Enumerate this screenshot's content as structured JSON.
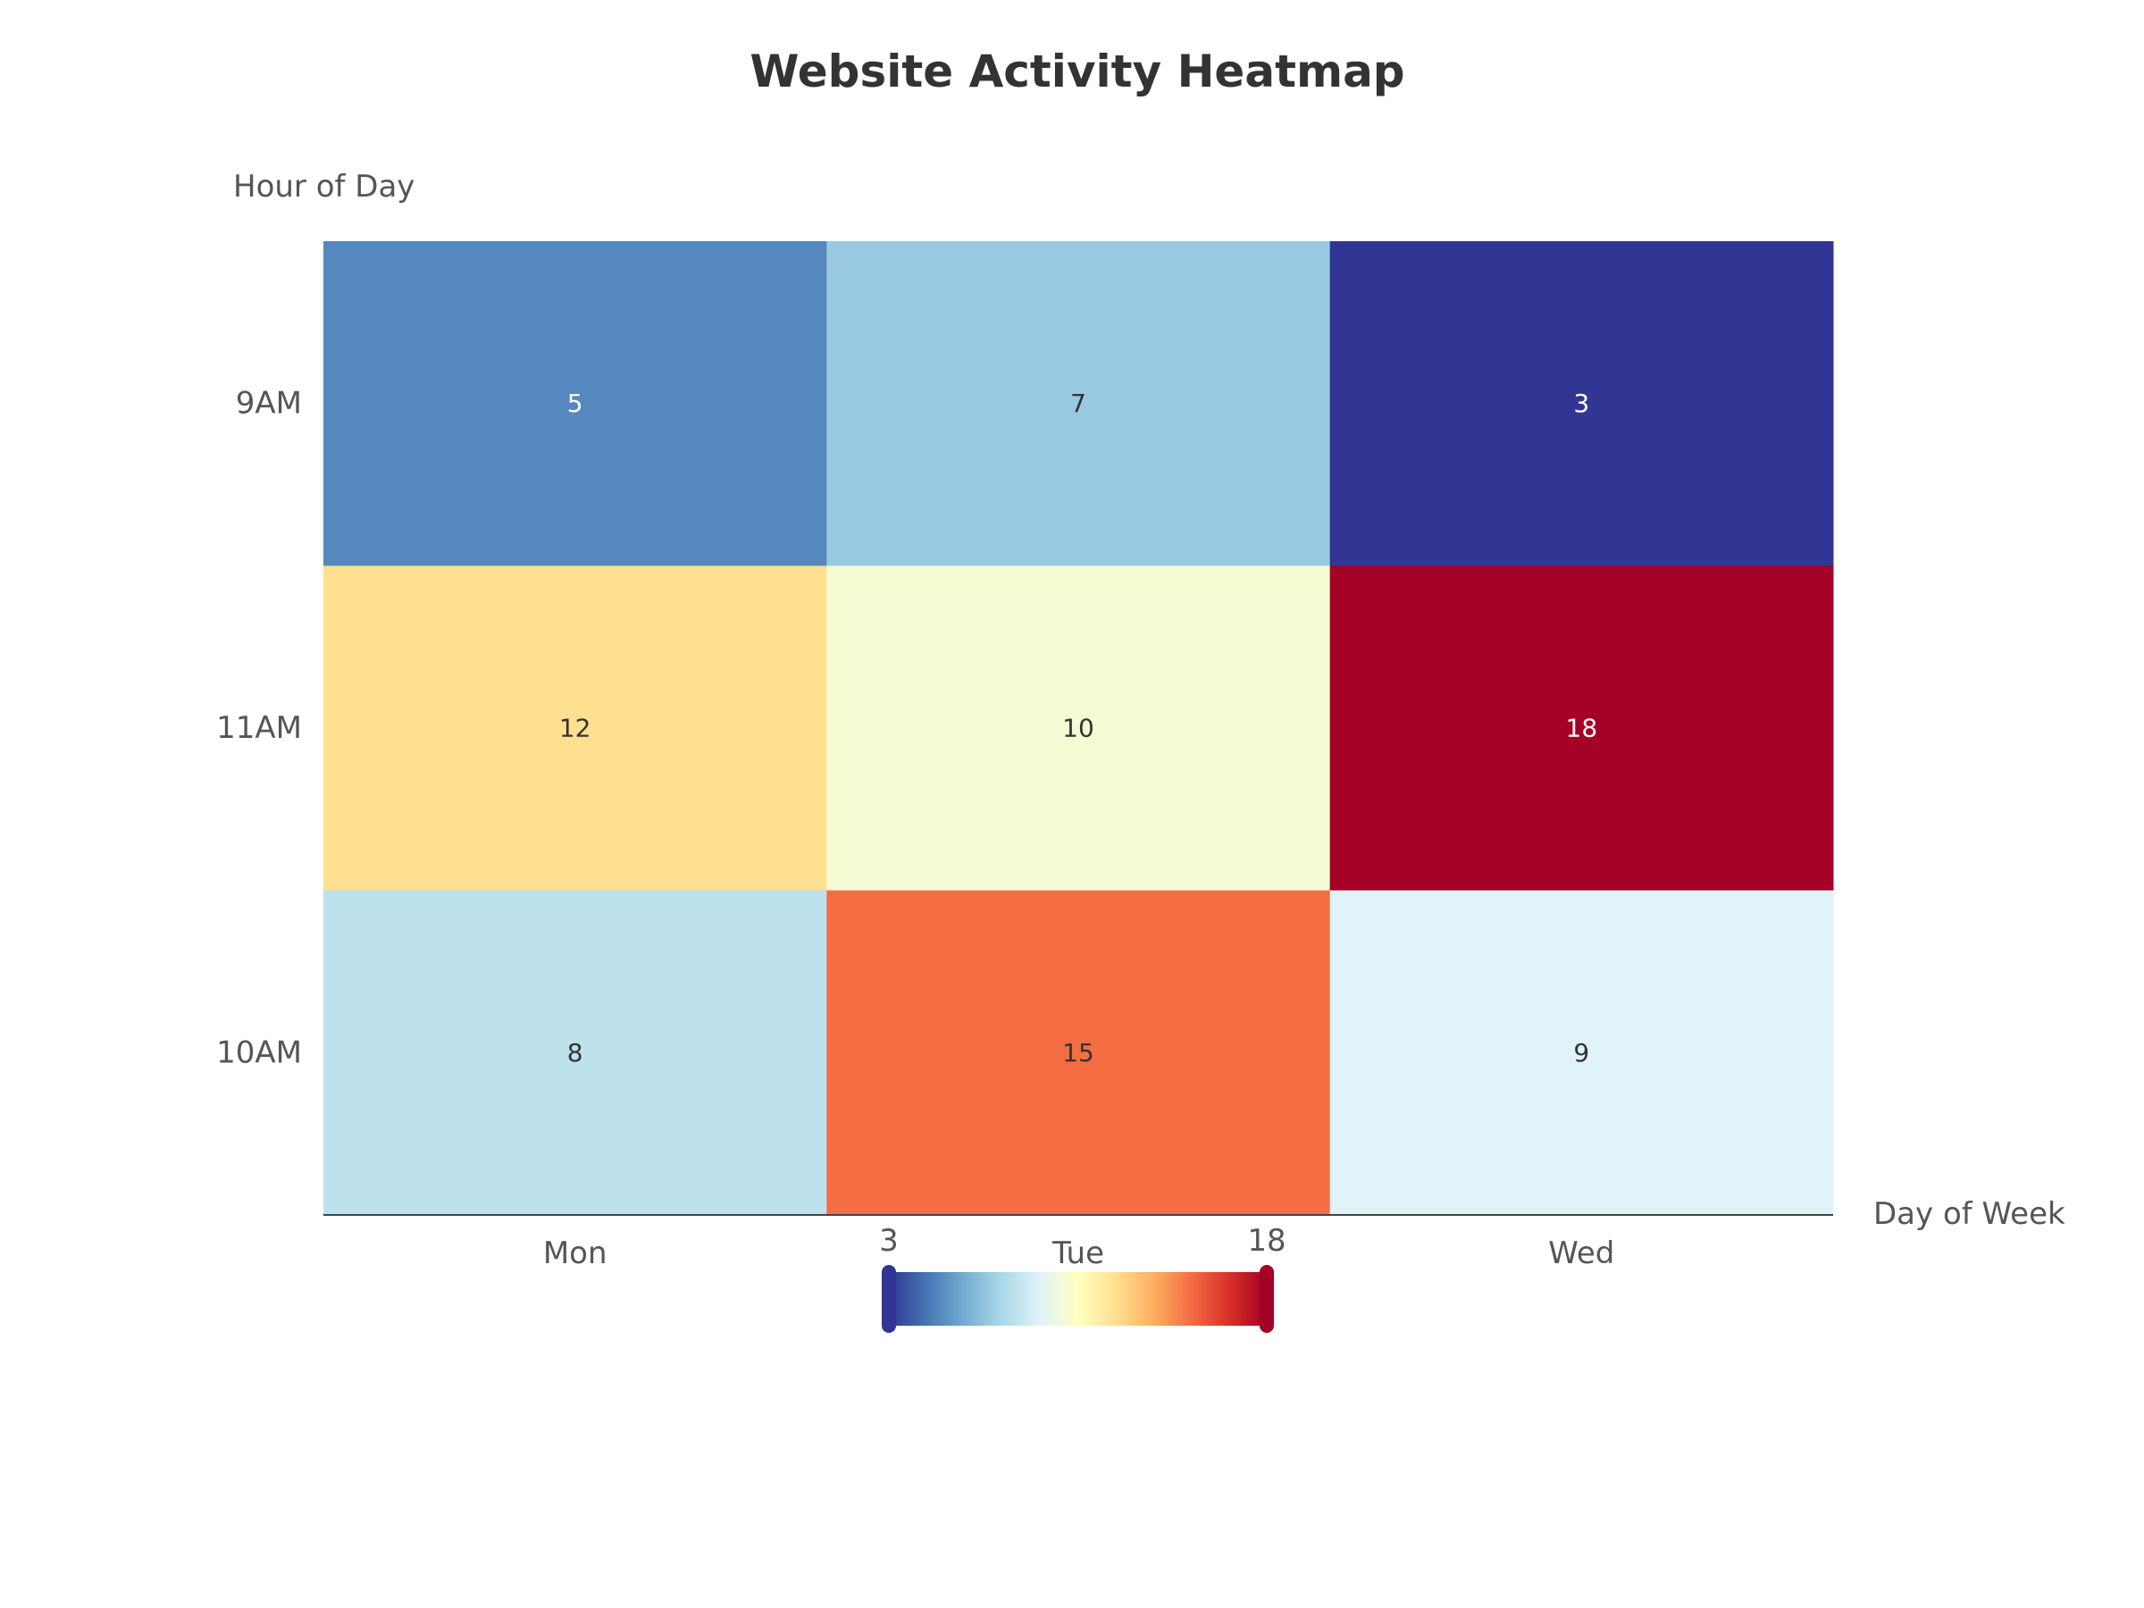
{
  "chart_data": {
    "type": "heatmap",
    "title": "Website Activity Heatmap",
    "xlabel": "Day of Week",
    "ylabel": "Hour of Day",
    "x": [
      "Mon",
      "Tue",
      "Wed"
    ],
    "y": [
      "9AM",
      "11AM",
      "10AM"
    ],
    "z": [
      [
        5,
        7,
        3
      ],
      [
        12,
        10,
        18
      ],
      [
        8,
        15,
        9
      ]
    ],
    "zlim": [
      3,
      18
    ],
    "colorscale": [
      "#313695",
      "#4575b4",
      "#74add1",
      "#abd9e9",
      "#e0f3f8",
      "#ffffbf",
      "#fee090",
      "#fdae61",
      "#f46d43",
      "#d73027",
      "#a50026"
    ],
    "colorbar": {
      "orientation": "horizontal",
      "placement": "bottom-center",
      "min_label": "3",
      "max_label": "18"
    },
    "grid": false,
    "show_cell_values": true
  }
}
